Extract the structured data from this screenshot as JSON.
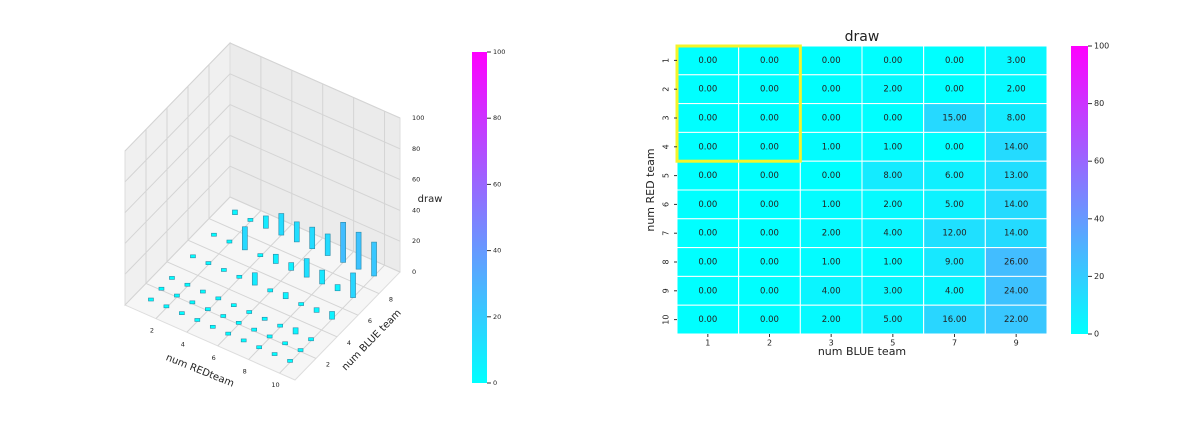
{
  "chart_data": [
    {
      "type": "bar3d",
      "xlabel": "num REDteam",
      "ylabel": "num BLUE team",
      "zlabel": "draw",
      "x": [
        1,
        2,
        3,
        4,
        5,
        6,
        7,
        8,
        9,
        10
      ],
      "y": [
        1,
        2,
        3,
        5,
        7,
        9
      ],
      "values": [
        [
          0,
          0,
          0,
          0,
          0,
          3
        ],
        [
          0,
          0,
          0,
          2,
          0,
          2
        ],
        [
          0,
          0,
          0,
          0,
          15,
          8
        ],
        [
          0,
          0,
          1,
          1,
          0,
          14
        ],
        [
          0,
          0,
          0,
          8,
          6,
          13
        ],
        [
          0,
          0,
          1,
          2,
          5,
          14
        ],
        [
          0,
          0,
          2,
          4,
          12,
          14
        ],
        [
          0,
          0,
          1,
          1,
          9,
          26
        ],
        [
          0,
          0,
          4,
          3,
          4,
          24
        ],
        [
          0,
          0,
          2,
          5,
          16,
          22
        ]
      ],
      "xlim": [
        0,
        11
      ],
      "ylim": [
        0,
        10
      ],
      "zlim": [
        0,
        100
      ],
      "xticks": [
        2,
        4,
        6,
        8,
        10
      ],
      "yticks": [
        2,
        4,
        6,
        8
      ],
      "zticks": [
        0,
        20,
        40,
        60,
        80,
        100
      ],
      "colormap": [
        "#00ffff",
        "#ff00ff"
      ],
      "clim": [
        0,
        100
      ],
      "cbar_ticks": [
        0,
        20,
        40,
        60,
        80,
        100
      ]
    },
    {
      "type": "heatmap",
      "title": "draw",
      "xlabel": "num BLUE team",
      "ylabel": "num RED team",
      "x_categories": [
        1,
        2,
        3,
        5,
        7,
        9
      ],
      "y_categories": [
        1,
        2,
        3,
        4,
        5,
        6,
        7,
        8,
        9,
        10
      ],
      "values": [
        [
          0,
          0,
          0,
          0,
          0,
          3
        ],
        [
          0,
          0,
          0,
          2,
          0,
          2
        ],
        [
          0,
          0,
          0,
          0,
          15,
          8
        ],
        [
          0,
          0,
          1,
          1,
          0,
          14
        ],
        [
          0,
          0,
          0,
          8,
          6,
          13
        ],
        [
          0,
          0,
          1,
          2,
          5,
          14
        ],
        [
          0,
          0,
          2,
          4,
          12,
          14
        ],
        [
          0,
          0,
          1,
          1,
          9,
          26
        ],
        [
          0,
          0,
          4,
          3,
          4,
          24
        ],
        [
          0,
          0,
          2,
          5,
          16,
          22
        ]
      ],
      "value_labels": [
        [
          "0.00",
          "0.00",
          "0.00",
          "0.00",
          "0.00",
          "3.00"
        ],
        [
          "0.00",
          "0.00",
          "0.00",
          "2.00",
          "0.00",
          "2.00"
        ],
        [
          "0.00",
          "0.00",
          "0.00",
          "0.00",
          "15.00",
          "8.00"
        ],
        [
          "0.00",
          "0.00",
          "1.00",
          "1.00",
          "0.00",
          "14.00"
        ],
        [
          "0.00",
          "0.00",
          "0.00",
          "8.00",
          "6.00",
          "13.00"
        ],
        [
          "0.00",
          "0.00",
          "1.00",
          "2.00",
          "5.00",
          "14.00"
        ],
        [
          "0.00",
          "0.00",
          "2.00",
          "4.00",
          "12.00",
          "14.00"
        ],
        [
          "0.00",
          "0.00",
          "1.00",
          "1.00",
          "9.00",
          "26.00"
        ],
        [
          "0.00",
          "0.00",
          "4.00",
          "3.00",
          "4.00",
          "24.00"
        ],
        [
          "0.00",
          "0.00",
          "2.00",
          "5.00",
          "16.00",
          "22.00"
        ]
      ],
      "colormap": [
        "#00ffff",
        "#ff00ff"
      ],
      "clim": [
        0,
        100
      ],
      "cbar_ticks": [
        0,
        20,
        40,
        60,
        80,
        100
      ]
    }
  ]
}
